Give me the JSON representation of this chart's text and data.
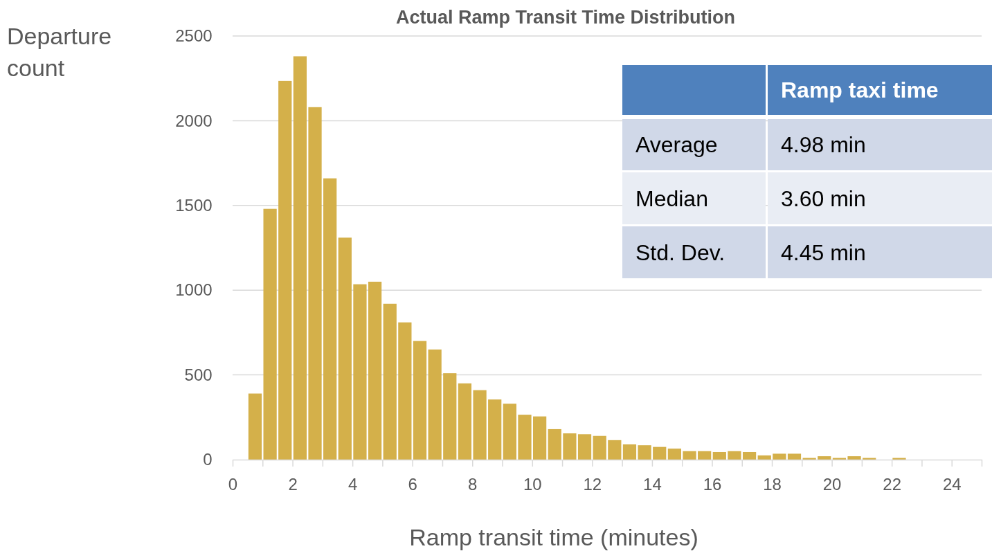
{
  "chart_data": {
    "type": "histogram",
    "title": "Actual Ramp Transit Time Distribution",
    "xlabel": "Ramp transit time (minutes)",
    "ylabel": "Departure count",
    "bins": [
      0.5,
      1,
      1.5,
      2,
      2.5,
      3,
      3.5,
      4,
      4.5,
      5,
      5.5,
      6,
      6.5,
      7,
      7.5,
      8,
      8.5,
      9,
      9.5,
      10,
      10.5,
      11,
      11.5,
      12,
      12.5,
      13,
      13.5,
      14,
      14.5,
      15,
      15.5,
      16,
      16.5,
      17,
      17.5,
      18,
      18.5,
      19,
      19.5,
      20,
      20.5,
      21,
      21.5,
      22,
      22.5
    ],
    "values": [
      390,
      1480,
      2235,
      2380,
      2080,
      1660,
      1310,
      1035,
      1050,
      920,
      810,
      700,
      650,
      510,
      450,
      410,
      355,
      330,
      265,
      255,
      180,
      155,
      150,
      140,
      115,
      90,
      85,
      75,
      65,
      50,
      50,
      45,
      50,
      45,
      25,
      35,
      35,
      10,
      20,
      10,
      20,
      10,
      0,
      10
    ],
    "color": "#d4b04a",
    "xlim": [
      0,
      25
    ],
    "xticks": [
      0,
      {
        "value": 1,
        "label": null
      },
      2,
      {
        "value": 3,
        "label": null
      },
      4,
      {
        "value": 5,
        "label": null
      },
      6,
      {
        "value": 7,
        "label": null
      },
      8,
      {
        "value": 9,
        "label": null
      },
      10,
      {
        "value": 11,
        "label": null
      },
      12,
      {
        "value": 13,
        "label": null
      },
      14,
      {
        "value": 15,
        "label": null
      },
      16,
      {
        "value": 17,
        "label": null
      },
      18,
      {
        "value": 19,
        "label": null
      },
      20,
      {
        "value": 21,
        "label": null
      },
      22,
      {
        "value": 23,
        "label": null
      },
      24,
      {
        "value": 25,
        "label": null
      }
    ],
    "ylim": [
      0,
      2500
    ],
    "yticks": [
      0,
      500,
      1000,
      1500,
      2000,
      2500
    ],
    "grid": "y",
    "annotations": [
      "Ramp taxi time",
      "Average",
      "4.98 min",
      "Median",
      "3.60 min",
      "Std. Dev.",
      "4.45 min"
    ]
  }
}
